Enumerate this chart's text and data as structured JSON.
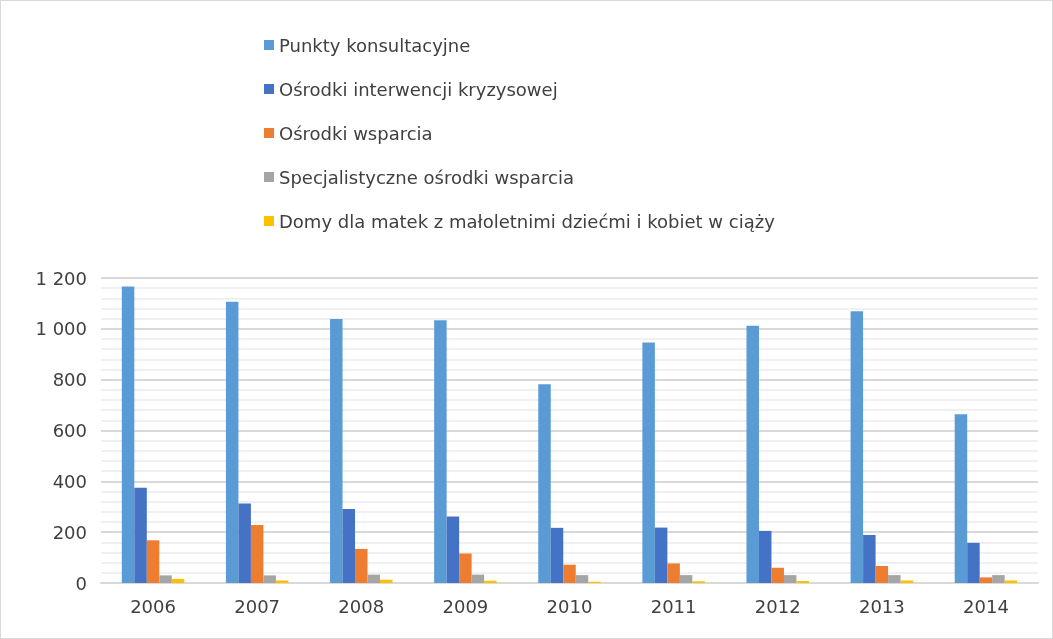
{
  "chart_data": {
    "type": "bar",
    "categories": [
      "2006",
      "2007",
      "2008",
      "2009",
      "2010",
      "2011",
      "2012",
      "2013",
      "2014"
    ],
    "series": [
      {
        "name": "Punkty konsultacyjne",
        "color": "#5b9bd5",
        "values": [
          1167,
          1107,
          1039,
          1034,
          782,
          946,
          1012,
          1069,
          664
        ]
      },
      {
        "name": "Ośrodki interwencji kryzysowej",
        "color": "#4472c4",
        "values": [
          375,
          313,
          291,
          262,
          217,
          218,
          205,
          189,
          158
        ]
      },
      {
        "name": "Ośrodki wsparcia",
        "color": "#ed7d31",
        "values": [
          168,
          228,
          134,
          116,
          72,
          77,
          60,
          67,
          22
        ]
      },
      {
        "name": "Specjalistyczne ośrodki wsparcia",
        "color": "#a5a5a5",
        "values": [
          30,
          30,
          33,
          33,
          31,
          31,
          31,
          31,
          31
        ]
      },
      {
        "name": "Domy dla matek z małoletnimi dziećmi i kobiet w ciąży",
        "color": "#ffc000",
        "values": [
          16,
          10,
          13,
          9,
          5,
          7,
          8,
          10,
          10
        ]
      }
    ],
    "ylim": [
      0,
      1200
    ],
    "yticks": [
      0,
      200,
      400,
      600,
      800,
      {
        "value": 1000,
        "label": "1 000"
      },
      {
        "value": 1200,
        "label": "1 200"
      }
    ],
    "grid": "y",
    "legend": "top"
  }
}
